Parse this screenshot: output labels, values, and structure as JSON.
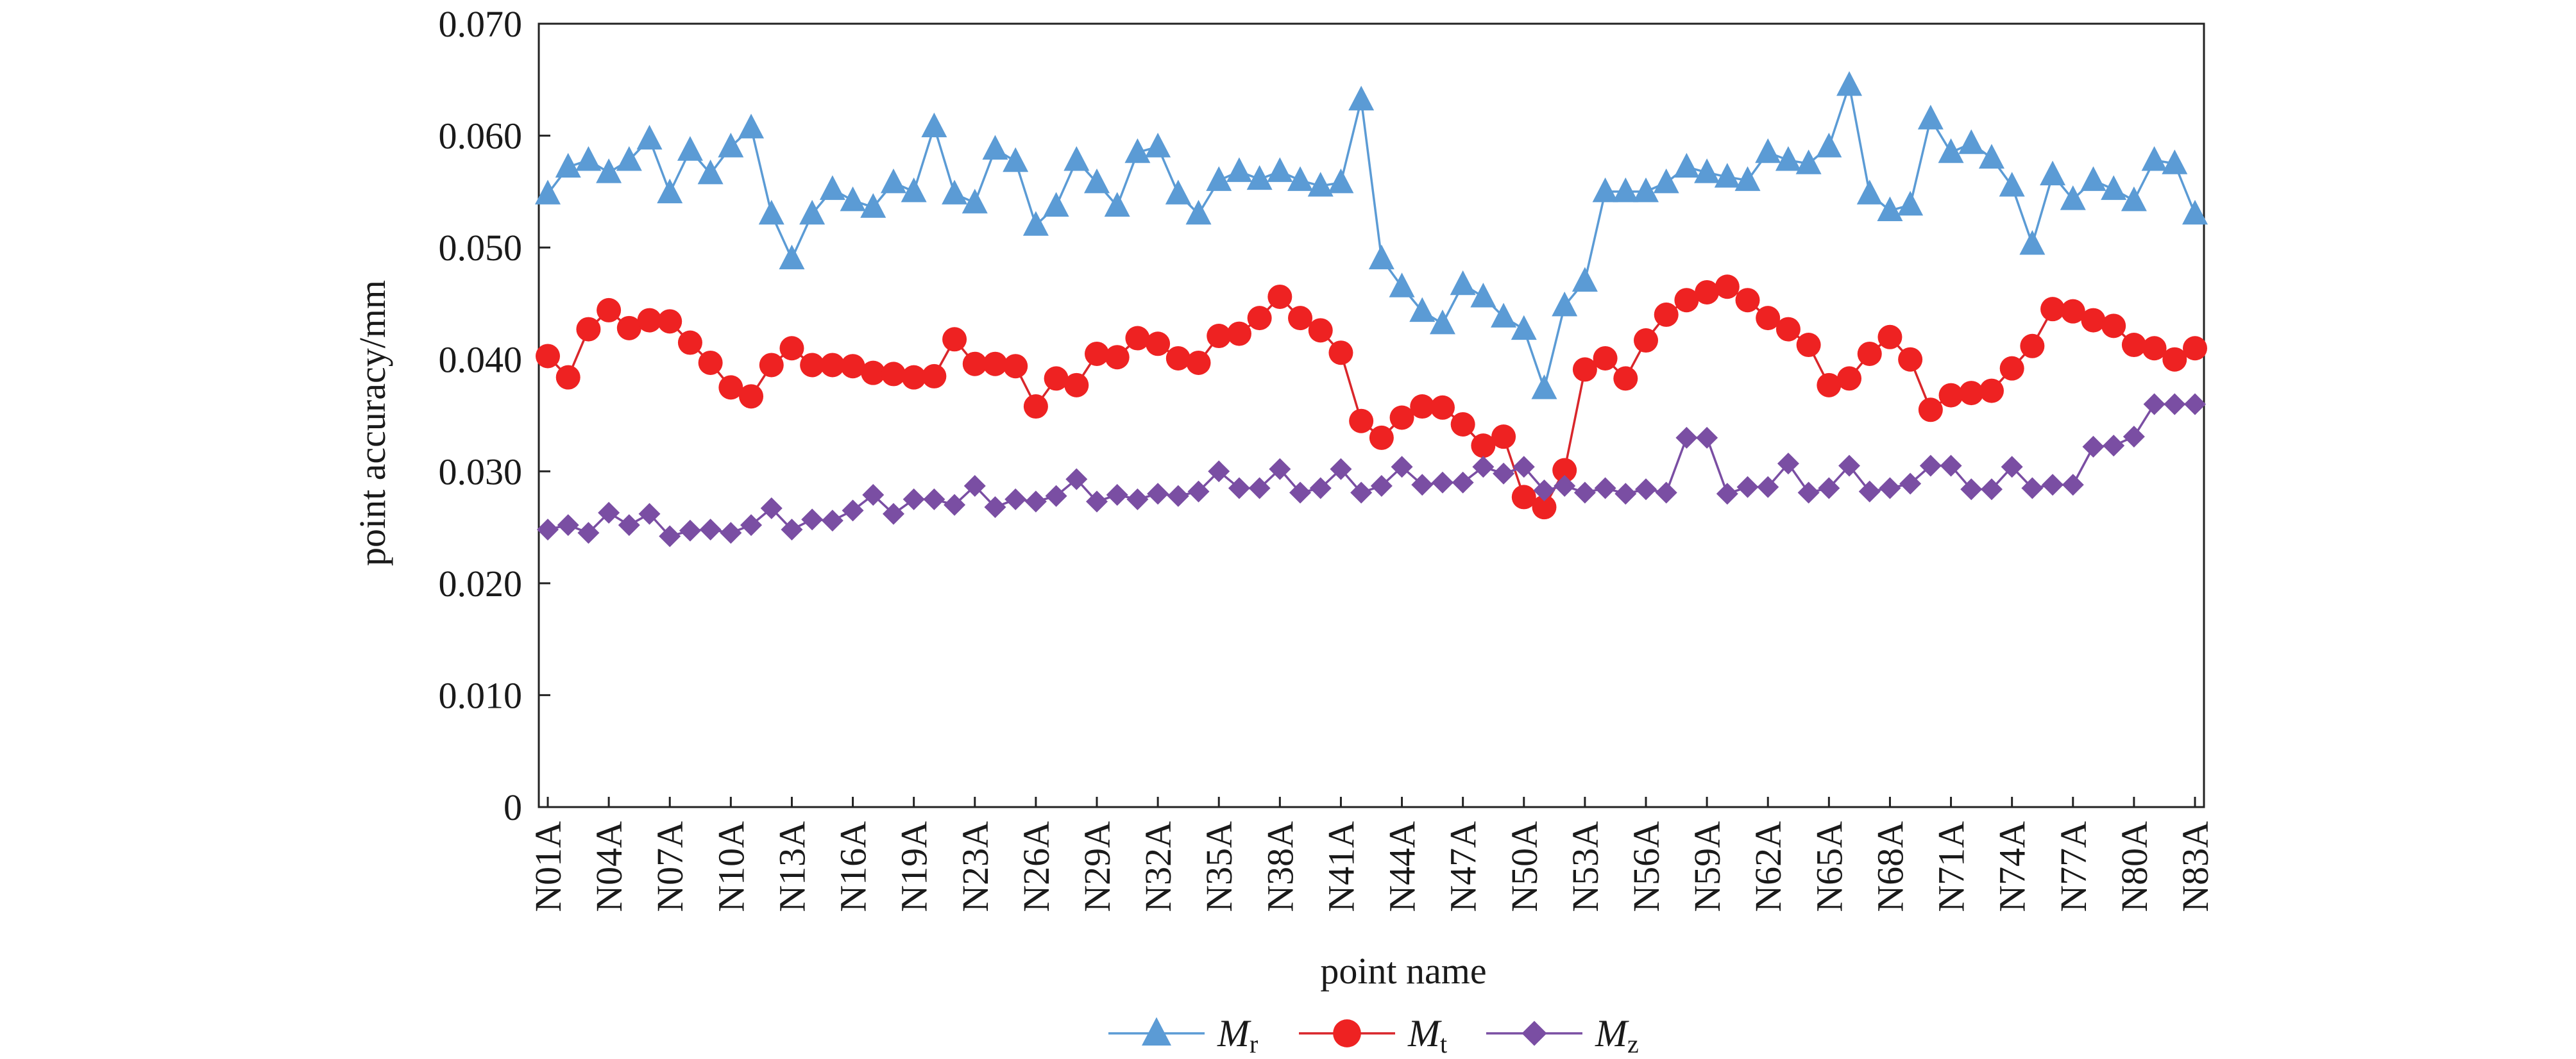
{
  "chart_data": {
    "type": "line",
    "xlabel": "point name",
    "ylabel": "point accuracy/mm",
    "ylim": [
      0,
      0.07
    ],
    "yticks": [
      "0",
      "0.010",
      "0.020",
      "0.030",
      "0.040",
      "0.050",
      "0.060",
      "0.070"
    ],
    "ytick_values": [
      0,
      0.01,
      0.02,
      0.03,
      0.04,
      0.05,
      0.06,
      0.07
    ],
    "x_tick_labels": [
      "N01A",
      "N04A",
      "N07A",
      "N10A",
      "N13A",
      "N16A",
      "N19A",
      "N23A",
      "N26A",
      "N29A",
      "N32A",
      "N35A",
      "N38A",
      "N41A",
      "N44A",
      "N47A",
      "N50A",
      "N53A",
      "N56A",
      "N59A",
      "N62A",
      "N65A",
      "N68A",
      "N71A",
      "N74A",
      "N77A",
      "N80A",
      "N83A"
    ],
    "x_tick_positions": [
      1,
      4,
      7,
      10,
      13,
      16,
      19,
      22,
      25,
      28,
      31,
      34,
      37,
      40,
      43,
      46,
      49,
      52,
      55,
      58,
      61,
      64,
      67,
      70,
      73,
      76,
      79,
      82
    ],
    "grid": false,
    "legend_position": "bottom",
    "series": [
      {
        "name": "M",
        "subscript": "r",
        "color": "#5b9bd5",
        "marker": "triangle",
        "values": [
          0.0548,
          0.0572,
          0.0578,
          0.0567,
          0.0578,
          0.0597,
          0.0549,
          0.0587,
          0.0566,
          0.059,
          0.0607,
          0.053,
          0.049,
          0.053,
          0.0552,
          0.0542,
          0.0536,
          0.0558,
          0.055,
          0.0608,
          0.0548,
          0.054,
          0.0588,
          0.0577,
          0.052,
          0.0537,
          0.0578,
          0.0558,
          0.0537,
          0.0585,
          0.059,
          0.0548,
          0.053,
          0.056,
          0.0568,
          0.0561,
          0.0568,
          0.056,
          0.0555,
          0.0558,
          0.0632,
          0.049,
          0.0465,
          0.0443,
          0.0432,
          0.0467,
          0.0456,
          0.0438,
          0.0427,
          0.0374,
          0.0448,
          0.047,
          0.055,
          0.055,
          0.055,
          0.0558,
          0.0572,
          0.0567,
          0.0563,
          0.056,
          0.0585,
          0.0578,
          0.0575,
          0.059,
          0.0645,
          0.0548,
          0.0533,
          0.0538,
          0.0615,
          0.0585,
          0.0593,
          0.058,
          0.0555,
          0.0503,
          0.0565,
          0.0543,
          0.056,
          0.0552,
          0.0542,
          0.0578,
          0.0575,
          0.053
        ]
      },
      {
        "name": "M",
        "subscript": "t",
        "color": "#ee2222",
        "line_color": "#d9262b",
        "marker": "circle",
        "values": [
          0.0403,
          0.0384,
          0.0427,
          0.0444,
          0.0428,
          0.0435,
          0.0434,
          0.0415,
          0.0397,
          0.0375,
          0.0367,
          0.0395,
          0.041,
          0.0395,
          0.0395,
          0.0394,
          0.0388,
          0.0387,
          0.0384,
          0.0385,
          0.0418,
          0.0396,
          0.0396,
          0.0394,
          0.0358,
          0.0383,
          0.0377,
          0.0405,
          0.0402,
          0.0419,
          0.0414,
          0.0401,
          0.0397,
          0.0421,
          0.0423,
          0.0437,
          0.0456,
          0.0437,
          0.0426,
          0.0406,
          0.0345,
          0.033,
          0.0348,
          0.0358,
          0.0357,
          0.0342,
          0.0323,
          0.0331,
          0.0277,
          0.0268,
          0.0301,
          0.0391,
          0.0401,
          0.0383,
          0.0417,
          0.044,
          0.0453,
          0.046,
          0.0465,
          0.0453,
          0.0437,
          0.0427,
          0.0413,
          0.0377,
          0.0383,
          0.0405,
          0.042,
          0.04,
          0.0355,
          0.0368,
          0.037,
          0.0372,
          0.0392,
          0.0412,
          0.0445,
          0.0443,
          0.0435,
          0.043,
          0.0413,
          0.041,
          0.04,
          0.041
        ]
      },
      {
        "name": "M",
        "subscript": "z",
        "color": "#7a4ea3",
        "marker": "diamond",
        "values": [
          0.0248,
          0.0252,
          0.0245,
          0.0263,
          0.0252,
          0.0262,
          0.0242,
          0.0247,
          0.0248,
          0.0245,
          0.0252,
          0.0267,
          0.0248,
          0.0257,
          0.0256,
          0.0265,
          0.0279,
          0.0262,
          0.0275,
          0.0275,
          0.027,
          0.0287,
          0.0268,
          0.0275,
          0.0273,
          0.0278,
          0.0293,
          0.0273,
          0.0279,
          0.0275,
          0.028,
          0.0278,
          0.0282,
          0.03,
          0.0285,
          0.0285,
          0.0302,
          0.0281,
          0.0285,
          0.0302,
          0.0281,
          0.0287,
          0.0304,
          0.0288,
          0.029,
          0.029,
          0.0304,
          0.0298,
          0.0304,
          0.0283,
          0.0287,
          0.0281,
          0.0285,
          0.028,
          0.0284,
          0.0281,
          0.033,
          0.033,
          0.028,
          0.0286,
          0.0286,
          0.0307,
          0.0281,
          0.0285,
          0.0305,
          0.0282,
          0.0285,
          0.0289,
          0.0305,
          0.0305,
          0.0284,
          0.0284,
          0.0304,
          0.0285,
          0.0288,
          0.0288,
          0.0322,
          0.0323,
          0.0331,
          0.036,
          0.036,
          0.036
        ]
      }
    ]
  }
}
